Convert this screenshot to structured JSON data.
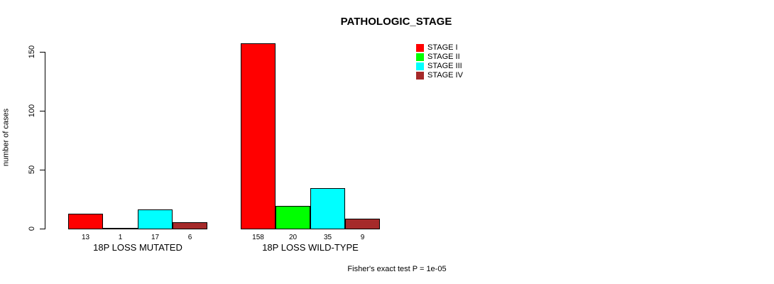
{
  "chart_data": {
    "type": "bar",
    "title": "PATHOLOGIC_STAGE",
    "xlabel": "",
    "ylabel": "number of cases",
    "ylim": [
      0,
      158
    ],
    "yticks": [
      0,
      50,
      100,
      150
    ],
    "grid": false,
    "legend_position": "top-right",
    "series": [
      "STAGE I",
      "STAGE II",
      "STAGE III",
      "STAGE IV"
    ],
    "series_colors": [
      "#ff0000",
      "#00ff00",
      "#00ffff",
      "#a52a2a"
    ],
    "groups": [
      {
        "label": "18P LOSS MUTATED",
        "values": [
          13,
          1,
          17,
          6
        ]
      },
      {
        "label": "18P LOSS WILD-TYPE",
        "values": [
          158,
          20,
          35,
          9
        ]
      }
    ],
    "annotation": "Fisher's exact test P = 1e-05"
  }
}
